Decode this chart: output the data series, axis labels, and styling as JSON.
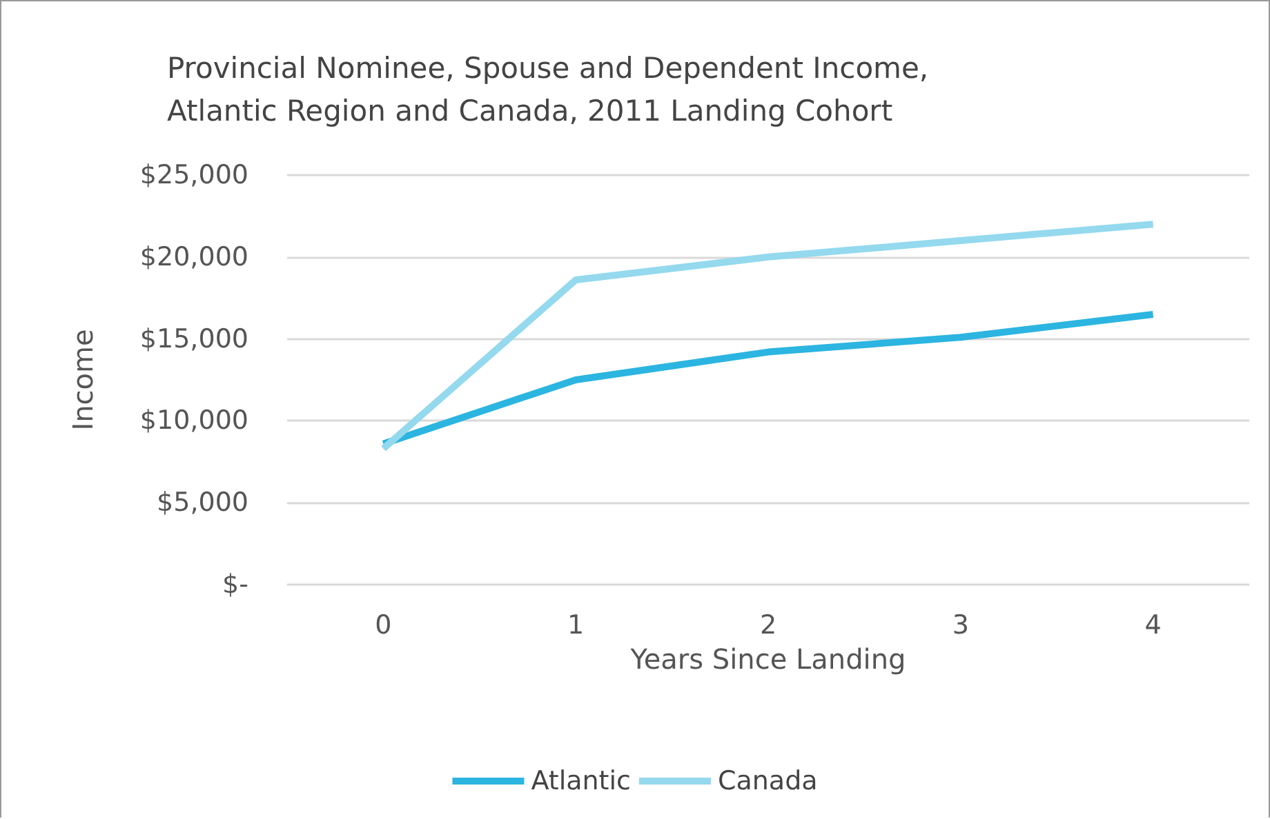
{
  "chart_data": {
    "type": "line",
    "title": "Provincial Nominee, Spouse and Dependent Income,\nAtlantic Region and Canada, 2011 Landing Cohort",
    "xlabel": "Years Since Landing",
    "ylabel": "Income",
    "categories": [
      "0",
      "1",
      "2",
      "3",
      "4"
    ],
    "series": [
      {
        "name": "Atlantic",
        "color": "#2cb5e0",
        "values": [
          8600,
          12500,
          14200,
          15100,
          16500
        ]
      },
      {
        "name": "Canada",
        "color": "#94d9ee",
        "values": [
          8300,
          18600,
          20000,
          21000,
          22000
        ]
      }
    ],
    "ylim": [
      0,
      25000
    ],
    "yticks": [
      {
        "value": 0,
        "label": "$-"
      },
      {
        "value": 5000,
        "label": "$5,000"
      },
      {
        "value": 10000,
        "label": "$10,000"
      },
      {
        "value": 15000,
        "label": "$15,000"
      },
      {
        "value": 20000,
        "label": "$20,000"
      },
      {
        "value": 25000,
        "label": "$25,000"
      }
    ],
    "grid": "y",
    "legend": "bottom",
    "marker": "none",
    "line_style": "solid"
  }
}
